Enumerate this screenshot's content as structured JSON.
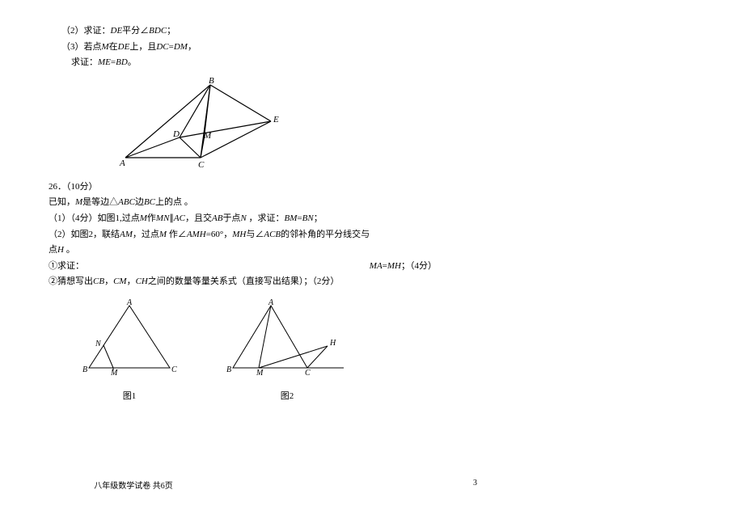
{
  "p25": {
    "sub2": "（2）求证：<i>DE</i>平分∠<i>BDC</i>；",
    "sub3a": "（3）若点<i>M</i>在<i>DE</i>上，且<i>DC</i>=<i>DM</i>，",
    "sub3b": "求证：<i>ME</i>=<i>BD</i>。"
  },
  "p26": {
    "header": "26．（10分）",
    "given": "已知，<i>M</i>是等边△<i>ABC</i>边<i>BC</i>上的点 。",
    "sub1": "（1）（4分）如图1,过点<i>M</i>作<i>MN</i>∥<i>AC</i>，且交<i>AB</i>于点<i>N</i> ，求证：<i>BM</i>=<i>BN</i>；",
    "sub2a": "（2）如图2，联结<i>AM</i>，过点<i>M</i> 作∠<i>AMH</i>=60°，<i>MH</i>与∠<i>ACB</i>的邻补角的平分线交与",
    "sub2b": "点<i>H</i> 。",
    "sub2c_left": "①求证：",
    "sub2c_right": "<i>MA</i>=<i>MH</i>；（4分）",
    "sub2d": "②猜想写出<i>CB</i>，<i>CM</i>，<i>CH</i>之间的数量等量关系式（直接写出结果）；（2分）"
  },
  "figures": {
    "fig25": {
      "stroke": "#000000",
      "stroke_width": 1.2,
      "labels": {
        "A": "A",
        "B": "B",
        "C": "C",
        "D": "D",
        "E": "E",
        "M": "M"
      }
    },
    "fig26_1": {
      "label": "图1",
      "stroke": "#000000",
      "labels": {
        "A": "A",
        "B": "B",
        "C": "C",
        "M": "M",
        "N": "N"
      }
    },
    "fig26_2": {
      "label": "图2",
      "stroke": "#000000",
      "labels": {
        "A": "A",
        "B": "B",
        "C": "C",
        "M": "M",
        "H": "H"
      }
    }
  },
  "footer": {
    "left": "八年级数学试卷  共6页",
    "page": "3"
  }
}
